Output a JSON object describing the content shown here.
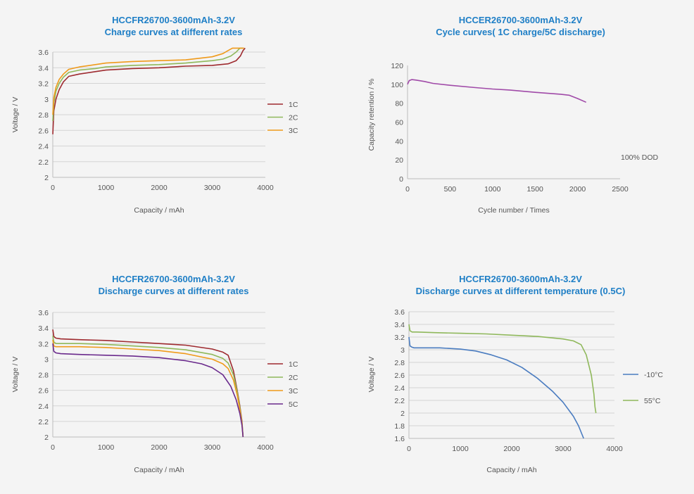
{
  "chart_data": [
    {
      "type": "line",
      "title": "HCCFR26700-3600mAh-3.2V",
      "subtitle": "Charge curves at different rates",
      "xlabel": "Capacity / mAh",
      "ylabel": "Voltage / V",
      "xlim": [
        0,
        4000
      ],
      "ylim": [
        2,
        3.6
      ],
      "xticks": [
        0,
        1000,
        2000,
        3000,
        4000
      ],
      "yticks": [
        2,
        2.2,
        2.4,
        2.6,
        2.8,
        3,
        3.2,
        3.4,
        3.6
      ],
      "grid": true,
      "legend_position": "right",
      "series": [
        {
          "name": "1C",
          "color": "#9e2a2f",
          "x": [
            0,
            20,
            60,
            120,
            200,
            300,
            500,
            800,
            1000,
            1500,
            2000,
            2500,
            3000,
            3300,
            3450,
            3530,
            3580,
            3620
          ],
          "y": [
            2.55,
            2.85,
            3.0,
            3.12,
            3.22,
            3.29,
            3.32,
            3.35,
            3.37,
            3.39,
            3.4,
            3.42,
            3.43,
            3.45,
            3.49,
            3.55,
            3.62,
            3.65
          ]
        },
        {
          "name": "2C",
          "color": "#8fb85b",
          "x": [
            0,
            20,
            60,
            120,
            200,
            300,
            500,
            800,
            1000,
            1500,
            2000,
            2500,
            3000,
            3200,
            3350,
            3450,
            3520,
            3580
          ],
          "y": [
            2.72,
            2.95,
            3.1,
            3.2,
            3.28,
            3.34,
            3.37,
            3.39,
            3.41,
            3.43,
            3.44,
            3.46,
            3.49,
            3.51,
            3.55,
            3.6,
            3.65,
            3.65
          ]
        },
        {
          "name": "3C",
          "color": "#ef9a1a",
          "x": [
            0,
            20,
            60,
            120,
            200,
            300,
            500,
            800,
            1000,
            1500,
            2000,
            2500,
            3000,
            3200,
            3300,
            3380,
            3500,
            3600
          ],
          "y": [
            2.8,
            3.02,
            3.15,
            3.25,
            3.32,
            3.38,
            3.41,
            3.44,
            3.46,
            3.48,
            3.49,
            3.5,
            3.54,
            3.58,
            3.62,
            3.65,
            3.65,
            3.65
          ]
        }
      ]
    },
    {
      "type": "line",
      "title": "HCCER26700-3600mAh-3.2V",
      "subtitle": "Cycle curves( 1C charge/5C discharge)",
      "xlabel": "Cycle number / Times",
      "ylabel": "Capacity retention / %",
      "xlim": [
        0,
        2500
      ],
      "ylim": [
        0,
        120
      ],
      "xticks": [
        0,
        500,
        1000,
        1500,
        2000,
        2500
      ],
      "yticks": [
        0,
        20,
        40,
        60,
        80,
        100,
        120
      ],
      "grid": false,
      "annotation": "100% DOD",
      "series": [
        {
          "color": "#a04aa8",
          "x": [
            0,
            20,
            50,
            100,
            200,
            300,
            500,
            800,
            1000,
            1200,
            1500,
            1800,
            1900,
            2000,
            2100
          ],
          "y": [
            100,
            104,
            105,
            104.5,
            103,
            101,
            99,
            96.5,
            95,
            94,
            91.5,
            89.5,
            88.5,
            85,
            81
          ]
        }
      ]
    },
    {
      "type": "line",
      "title": "HCCFR26700-3600mAh-3.2V",
      "subtitle": "Discharge curves at different rates",
      "xlabel": "Capacity / mAh",
      "ylabel": "Voltage / V",
      "xlim": [
        0,
        4000
      ],
      "ylim": [
        2,
        3.6
      ],
      "xticks": [
        0,
        1000,
        2000,
        3000,
        4000
      ],
      "yticks": [
        2,
        2.2,
        2.4,
        2.6,
        2.8,
        3,
        3.2,
        3.4,
        3.6
      ],
      "grid": true,
      "legend_position": "right",
      "series": [
        {
          "name": "1C",
          "color": "#9e2a2f",
          "x": [
            0,
            20,
            60,
            150,
            500,
            1000,
            1500,
            2000,
            2500,
            3000,
            3200,
            3300,
            3400,
            3470,
            3520,
            3560,
            3580
          ],
          "y": [
            3.38,
            3.29,
            3.27,
            3.26,
            3.25,
            3.24,
            3.22,
            3.2,
            3.18,
            3.13,
            3.09,
            3.05,
            2.85,
            2.6,
            2.4,
            2.2,
            2.0
          ]
        },
        {
          "name": "2C",
          "color": "#8fb85b",
          "x": [
            0,
            20,
            60,
            150,
            500,
            1000,
            1500,
            2000,
            2500,
            3000,
            3200,
            3300,
            3400,
            3470,
            3520,
            3560,
            3580
          ],
          "y": [
            3.3,
            3.22,
            3.2,
            3.2,
            3.2,
            3.19,
            3.17,
            3.15,
            3.12,
            3.06,
            3.01,
            2.95,
            2.8,
            2.58,
            2.38,
            2.18,
            2.0
          ]
        },
        {
          "name": "3C",
          "color": "#ef9a1a",
          "x": [
            0,
            20,
            60,
            150,
            500,
            1000,
            1500,
            2000,
            2500,
            3000,
            3200,
            3300,
            3400,
            3470,
            3520,
            3560,
            3580
          ],
          "y": [
            3.25,
            3.17,
            3.16,
            3.16,
            3.16,
            3.15,
            3.13,
            3.11,
            3.07,
            3.0,
            2.94,
            2.88,
            2.73,
            2.54,
            2.35,
            2.17,
            2.0
          ]
        },
        {
          "name": "5C",
          "color": "#6a2a8c",
          "x": [
            0,
            20,
            60,
            150,
            500,
            1000,
            1500,
            2000,
            2500,
            2800,
            3000,
            3200,
            3350,
            3450,
            3520,
            3560,
            3580
          ],
          "y": [
            3.2,
            3.1,
            3.08,
            3.07,
            3.06,
            3.05,
            3.04,
            3.02,
            2.98,
            2.94,
            2.89,
            2.8,
            2.65,
            2.48,
            2.3,
            2.15,
            2.0
          ]
        }
      ]
    },
    {
      "type": "line",
      "title": "HCCFR26700-3600mAh-3.2V",
      "subtitle": "Discharge curves at different temperature (0.5C)",
      "xlabel": "Capacity / mAh",
      "ylabel": "Voltage / V",
      "xlim": [
        0,
        4000
      ],
      "ylim": [
        1.6,
        3.6
      ],
      "xticks": [
        0,
        1000,
        2000,
        3000,
        4000
      ],
      "yticks": [
        1.6,
        1.8,
        2,
        2.2,
        2.4,
        2.6,
        2.8,
        3,
        3.2,
        3.4,
        3.6
      ],
      "grid": true,
      "legend_position": "right",
      "series": [
        {
          "name": "-10°C",
          "color": "#4a7cc0",
          "x": [
            0,
            20,
            60,
            100,
            300,
            600,
            1000,
            1300,
            1600,
            1900,
            2200,
            2500,
            2800,
            3000,
            3200,
            3300,
            3400
          ],
          "y": [
            3.2,
            3.06,
            3.04,
            3.03,
            3.03,
            3.03,
            3.01,
            2.98,
            2.92,
            2.84,
            2.72,
            2.55,
            2.34,
            2.17,
            1.95,
            1.8,
            1.6
          ]
        },
        {
          "name": "55°C",
          "color": "#8fb85b",
          "x": [
            0,
            20,
            60,
            150,
            500,
            1000,
            1500,
            2000,
            2500,
            3000,
            3200,
            3350,
            3450,
            3550,
            3600,
            3620,
            3640
          ],
          "y": [
            3.4,
            3.3,
            3.28,
            3.28,
            3.27,
            3.26,
            3.25,
            3.23,
            3.21,
            3.17,
            3.14,
            3.08,
            2.92,
            2.6,
            2.3,
            2.1,
            2.0
          ]
        }
      ]
    }
  ]
}
